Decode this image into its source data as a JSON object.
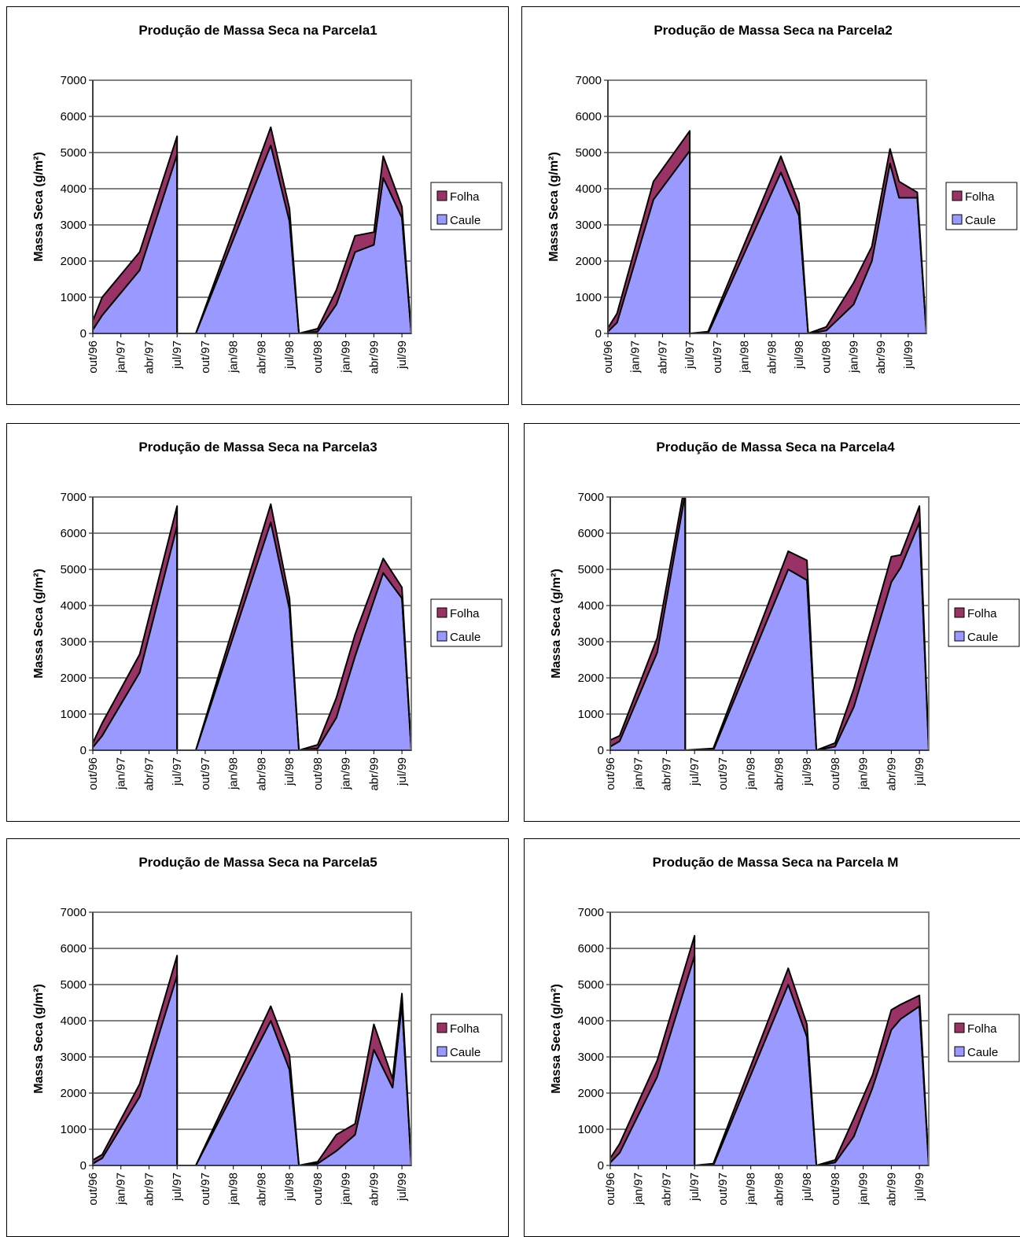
{
  "chart_data": [
    {
      "type": "stacked_area",
      "title": "Produção de Massa Seca na Parcela1",
      "ylabel": "Massa Seca (g/m²)",
      "x": [
        "1996-10",
        "1996-11",
        "1997-03",
        "1997-07",
        "1997-07",
        "1997-09",
        "1998-05",
        "1998-07",
        "1998-08",
        "1998-10",
        "1998-12",
        "1999-02",
        "1999-04",
        "1999-05",
        "1999-07",
        "1999-08"
      ],
      "series": [
        {
          "name": "Folha",
          "color": "#993366",
          "values": [
            250,
            500,
            500,
            500,
            0,
            0,
            500,
            350,
            0,
            80,
            400,
            450,
            350,
            600,
            300,
            0
          ]
        },
        {
          "name": "Caule",
          "color": "#9999ff",
          "values": [
            100,
            500,
            1750,
            4950,
            0,
            0,
            5200,
            3100,
            0,
            50,
            800,
            2250,
            2450,
            4300,
            3200,
            0
          ]
        }
      ],
      "xlim": [
        "1996-10",
        "1999-08"
      ],
      "ylim": [
        0,
        7000
      ],
      "yticks": [
        0,
        1000,
        2000,
        3000,
        4000,
        5000,
        6000,
        7000
      ],
      "xticks": [
        {
          "value": "1996-10",
          "label": "out/96"
        },
        {
          "value": "1997-01",
          "label": "jan/97"
        },
        {
          "value": "1997-04",
          "label": "abr/97"
        },
        {
          "value": "1997-07",
          "label": "jul/97"
        },
        {
          "value": "1997-10",
          "label": "out/97"
        },
        {
          "value": "1998-01",
          "label": "jan/98"
        },
        {
          "value": "1998-04",
          "label": "abr/98"
        },
        {
          "value": "1998-07",
          "label": "jul/98"
        },
        {
          "value": "1998-10",
          "label": "out/98"
        },
        {
          "value": "1999-01",
          "label": "jan/99"
        },
        {
          "value": "1999-04",
          "label": "abr/99"
        },
        {
          "value": "1999-07",
          "label": "jul/99"
        }
      ],
      "grid": true,
      "legend": "right"
    },
    {
      "type": "stacked_area",
      "title": "Produção de Massa Seca na Parcela2",
      "ylabel": "Massa Seca (g/m²)",
      "x": [
        "1996-10",
        "1996-11",
        "1997-03",
        "1997-07",
        "1997-07",
        "1997-09",
        "1998-05",
        "1998-07",
        "1998-08",
        "1998-10",
        "1999-01",
        "1999-03",
        "1999-05",
        "1999-06",
        "1999-08",
        "1999-09"
      ],
      "series": [
        {
          "name": "Folha",
          "color": "#993366",
          "values": [
            100,
            250,
            500,
            550,
            0,
            50,
            450,
            350,
            0,
            100,
            600,
            400,
            400,
            450,
            150,
            0
          ]
        },
        {
          "name": "Caule",
          "color": "#9999ff",
          "values": [
            50,
            300,
            3700,
            5050,
            0,
            0,
            4450,
            3250,
            0,
            80,
            800,
            2000,
            4700,
            3750,
            3750,
            0
          ]
        }
      ],
      "xlim": [
        "1996-10",
        "1999-09"
      ],
      "ylim": [
        0,
        7000
      ],
      "yticks": [
        0,
        1000,
        2000,
        3000,
        4000,
        5000,
        6000,
        7000
      ],
      "xticks": [
        {
          "value": "1996-10",
          "label": "out/96"
        },
        {
          "value": "1997-01",
          "label": "jan/97"
        },
        {
          "value": "1997-04",
          "label": "abr/97"
        },
        {
          "value": "1997-07",
          "label": "jul/97"
        },
        {
          "value": "1997-10",
          "label": "out/97"
        },
        {
          "value": "1998-01",
          "label": "jan/98"
        },
        {
          "value": "1998-04",
          "label": "abr/98"
        },
        {
          "value": "1998-07",
          "label": "jul/98"
        },
        {
          "value": "1998-10",
          "label": "out/98"
        },
        {
          "value": "1999-01",
          "label": "jan/99"
        },
        {
          "value": "1999-04",
          "label": "abr/99"
        },
        {
          "value": "1999-07",
          "label": "jul/99"
        }
      ],
      "grid": true,
      "legend": "right"
    },
    {
      "type": "stacked_area",
      "title": "Produção de Massa Seca na Parcela3",
      "ylabel": "Massa Seca (g/m²)",
      "x": [
        "1996-10",
        "1996-11",
        "1997-03",
        "1997-07",
        "1997-07",
        "1997-09",
        "1998-05",
        "1998-07",
        "1998-08",
        "1998-10",
        "1998-12",
        "1999-02",
        "1999-05",
        "1999-07",
        "1999-08"
      ],
      "series": [
        {
          "name": "Folha",
          "color": "#993366",
          "values": [
            120,
            350,
            500,
            550,
            0,
            0,
            500,
            300,
            0,
            100,
            550,
            600,
            400,
            300,
            0
          ]
        },
        {
          "name": "Caule",
          "color": "#9999ff",
          "values": [
            80,
            400,
            2150,
            6200,
            0,
            0,
            6300,
            3900,
            0,
            50,
            900,
            2600,
            4900,
            4200,
            0
          ]
        }
      ],
      "xlim": [
        "1996-10",
        "1999-08"
      ],
      "ylim": [
        0,
        7000
      ],
      "yticks": [
        0,
        1000,
        2000,
        3000,
        4000,
        5000,
        6000,
        7000
      ],
      "xticks": [
        {
          "value": "1996-10",
          "label": "out/96"
        },
        {
          "value": "1997-01",
          "label": "jan/97"
        },
        {
          "value": "1997-04",
          "label": "abr/97"
        },
        {
          "value": "1997-07",
          "label": "jul/97"
        },
        {
          "value": "1997-10",
          "label": "out/97"
        },
        {
          "value": "1998-01",
          "label": "jan/98"
        },
        {
          "value": "1998-04",
          "label": "abr/98"
        },
        {
          "value": "1998-07",
          "label": "jul/98"
        },
        {
          "value": "1998-10",
          "label": "out/98"
        },
        {
          "value": "1999-01",
          "label": "jan/99"
        },
        {
          "value": "1999-04",
          "label": "abr/99"
        },
        {
          "value": "1999-07",
          "label": "jul/99"
        }
      ],
      "grid": true,
      "legend": "right"
    },
    {
      "type": "stacked_area",
      "title": "Produção de Massa Seca na Parcela4",
      "ylabel": "Massa Seca (g/m²)",
      "x": [
        "1996-10",
        "1996-11",
        "1997-03",
        "1997-06",
        "1997-06",
        "1997-09",
        "1998-05",
        "1998-07",
        "1998-08",
        "1998-10",
        "1998-12",
        "1999-04",
        "1999-05",
        "1999-07",
        "1999-08"
      ],
      "series": [
        {
          "name": "Folha",
          "color": "#993366",
          "values": [
            180,
            150,
            400,
            300,
            0,
            50,
            500,
            550,
            0,
            100,
            500,
            700,
            350,
            450,
            0
          ]
        },
        {
          "name": "Caule",
          "color": "#9999ff",
          "values": [
            100,
            250,
            2700,
            7100,
            0,
            0,
            5000,
            4700,
            0,
            100,
            1200,
            4650,
            5050,
            6300,
            0
          ]
        }
      ],
      "xlim": [
        "1996-10",
        "1999-08"
      ],
      "ylim": [
        0,
        7000
      ],
      "yticks": [
        0,
        1000,
        2000,
        3000,
        4000,
        5000,
        6000,
        7000
      ],
      "xticks": [
        {
          "value": "1996-10",
          "label": "out/96"
        },
        {
          "value": "1997-01",
          "label": "jan/97"
        },
        {
          "value": "1997-04",
          "label": "abr/97"
        },
        {
          "value": "1997-07",
          "label": "jul/97"
        },
        {
          "value": "1997-10",
          "label": "out/97"
        },
        {
          "value": "1998-01",
          "label": "jan/98"
        },
        {
          "value": "1998-04",
          "label": "abr/98"
        },
        {
          "value": "1998-07",
          "label": "jul/98"
        },
        {
          "value": "1998-10",
          "label": "out/98"
        },
        {
          "value": "1999-01",
          "label": "jan/99"
        },
        {
          "value": "1999-04",
          "label": "abr/99"
        },
        {
          "value": "1999-07",
          "label": "jul/99"
        }
      ],
      "grid": true,
      "legend": "right"
    },
    {
      "type": "stacked_area",
      "title": "Produção de Massa Seca na Parcela5",
      "ylabel": "Massa Seca (g/m²)",
      "x": [
        "1996-10",
        "1996-11",
        "1997-03",
        "1997-07",
        "1997-07",
        "1997-09",
        "1998-05",
        "1998-07",
        "1998-08",
        "1998-10",
        "1998-12",
        "1999-02",
        "1999-04",
        "1999-06",
        "1999-07",
        "1999-08"
      ],
      "series": [
        {
          "name": "Folha",
          "color": "#993366",
          "values": [
            100,
            100,
            350,
            550,
            0,
            0,
            400,
            400,
            0,
            50,
            450,
            300,
            700,
            250,
            300,
            0
          ]
        },
        {
          "name": "Caule",
          "color": "#9999ff",
          "values": [
            50,
            200,
            1900,
            5250,
            0,
            0,
            4000,
            2650,
            0,
            50,
            400,
            850,
            3200,
            2150,
            4450,
            0
          ]
        }
      ],
      "xlim": [
        "1996-10",
        "1999-08"
      ],
      "ylim": [
        0,
        7000
      ],
      "yticks": [
        0,
        1000,
        2000,
        3000,
        4000,
        5000,
        6000,
        7000
      ],
      "xticks": [
        {
          "value": "1996-10",
          "label": "out/96"
        },
        {
          "value": "1997-01",
          "label": "jan/97"
        },
        {
          "value": "1997-04",
          "label": "abr/97"
        },
        {
          "value": "1997-07",
          "label": "jul/97"
        },
        {
          "value": "1997-10",
          "label": "out/97"
        },
        {
          "value": "1998-01",
          "label": "jan/98"
        },
        {
          "value": "1998-04",
          "label": "abr/98"
        },
        {
          "value": "1998-07",
          "label": "jul/98"
        },
        {
          "value": "1998-10",
          "label": "out/98"
        },
        {
          "value": "1999-01",
          "label": "jan/99"
        },
        {
          "value": "1999-04",
          "label": "abr/99"
        },
        {
          "value": "1999-07",
          "label": "jul/99"
        }
      ],
      "grid": true,
      "legend": "right"
    },
    {
      "type": "stacked_area",
      "title": "Produção de Massa Seca na Parcela M",
      "ylabel": "Massa Seca (g/m²)",
      "x": [
        "1996-10",
        "1996-11",
        "1997-03",
        "1997-07",
        "1997-07",
        "1997-09",
        "1998-05",
        "1998-07",
        "1998-08",
        "1998-10",
        "1998-12",
        "1999-02",
        "1999-04",
        "1999-05",
        "1999-07",
        "1999-08"
      ],
      "series": [
        {
          "name": "Folha",
          "color": "#993366",
          "values": [
            120,
            250,
            450,
            550,
            0,
            50,
            450,
            350,
            0,
            70,
            500,
            350,
            550,
            400,
            300,
            0
          ]
        },
        {
          "name": "Caule",
          "color": "#9999ff",
          "values": [
            80,
            350,
            2450,
            5800,
            0,
            0,
            5000,
            3550,
            0,
            80,
            800,
            2150,
            3750,
            4050,
            4400,
            0
          ]
        }
      ],
      "xlim": [
        "1996-10",
        "1999-08"
      ],
      "ylim": [
        0,
        7000
      ],
      "yticks": [
        0,
        1000,
        2000,
        3000,
        4000,
        5000,
        6000,
        7000
      ],
      "xticks": [
        {
          "value": "1996-10",
          "label": "out/96"
        },
        {
          "value": "1997-01",
          "label": "jan/97"
        },
        {
          "value": "1997-04",
          "label": "abr/97"
        },
        {
          "value": "1997-07",
          "label": "jul/97"
        },
        {
          "value": "1997-10",
          "label": "out/97"
        },
        {
          "value": "1998-01",
          "label": "jan/98"
        },
        {
          "value": "1998-04",
          "label": "abr/98"
        },
        {
          "value": "1998-07",
          "label": "jul/98"
        },
        {
          "value": "1998-10",
          "label": "out/98"
        },
        {
          "value": "1999-01",
          "label": "jan/99"
        },
        {
          "value": "1999-04",
          "label": "abr/99"
        },
        {
          "value": "1999-07",
          "label": "jul/99"
        }
      ],
      "grid": true,
      "legend": "right"
    }
  ]
}
